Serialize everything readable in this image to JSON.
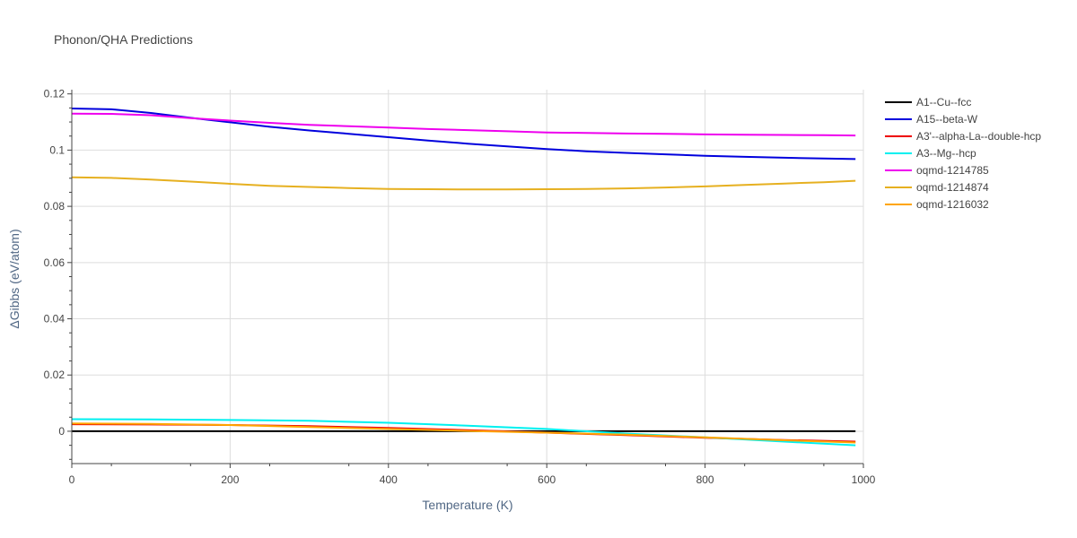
{
  "chart_data": {
    "type": "line",
    "title": "Phonon/QHA Predictions",
    "xlabel": "Temperature (K)",
    "ylabel": "ΔGibbs (eV/atom)",
    "xlim": [
      0,
      1000
    ],
    "ylim": [
      -0.0115,
      0.1215
    ],
    "x_ticks": [
      0,
      200,
      400,
      600,
      800,
      1000
    ],
    "y_ticks": [
      0,
      0.02,
      0.04,
      0.06,
      0.08,
      0.1,
      0.12
    ],
    "x_tick_labels": [
      "0",
      "200",
      "400",
      "600",
      "800",
      "1000"
    ],
    "y_tick_labels": [
      "0",
      "0.02",
      "0.04",
      "0.06",
      "0.08",
      "0.1",
      "0.12"
    ],
    "grid": true,
    "legend_position": "right",
    "series": [
      {
        "name": "A1--Cu--fcc",
        "color": "#000000",
        "points": [
          [
            0,
            0
          ],
          [
            100,
            0
          ],
          [
            200,
            0
          ],
          [
            300,
            0
          ],
          [
            400,
            0
          ],
          [
            500,
            0
          ],
          [
            600,
            0
          ],
          [
            700,
            0
          ],
          [
            800,
            0
          ],
          [
            900,
            0
          ],
          [
            990,
            0
          ]
        ]
      },
      {
        "name": "A15--beta-W",
        "color": "#0000dd",
        "points": [
          [
            0,
            0.1148
          ],
          [
            50,
            0.1145
          ],
          [
            100,
            0.1132
          ],
          [
            150,
            0.1115
          ],
          [
            200,
            0.1099
          ],
          [
            250,
            0.1083
          ],
          [
            300,
            0.107
          ],
          [
            350,
            0.1058
          ],
          [
            400,
            0.1046
          ],
          [
            450,
            0.1034
          ],
          [
            500,
            0.1023
          ],
          [
            550,
            0.1013
          ],
          [
            600,
            0.1004
          ],
          [
            650,
            0.0996
          ],
          [
            700,
            0.099
          ],
          [
            750,
            0.0985
          ],
          [
            800,
            0.098
          ],
          [
            850,
            0.0976
          ],
          [
            900,
            0.0973
          ],
          [
            950,
            0.097
          ],
          [
            990,
            0.0968
          ]
        ]
      },
      {
        "name": "A3'--alpha-La--double-hcp",
        "color": "#ee0000",
        "points": [
          [
            0,
            0.0025
          ],
          [
            100,
            0.0024
          ],
          [
            200,
            0.0022
          ],
          [
            300,
            0.0018
          ],
          [
            400,
            0.0012
          ],
          [
            500,
            0.0004
          ],
          [
            600,
            -0.0005
          ],
          [
            700,
            -0.0014
          ],
          [
            800,
            -0.0023
          ],
          [
            900,
            -0.0031
          ],
          [
            990,
            -0.0037
          ]
        ]
      },
      {
        "name": "A3--Mg--hcp",
        "color": "#00f0f0",
        "points": [
          [
            0,
            0.0043
          ],
          [
            100,
            0.0042
          ],
          [
            200,
            0.004
          ],
          [
            300,
            0.0037
          ],
          [
            400,
            0.003
          ],
          [
            500,
            0.002
          ],
          [
            600,
            0.0008
          ],
          [
            700,
            -0.0008
          ],
          [
            800,
            -0.0022
          ],
          [
            900,
            -0.0037
          ],
          [
            990,
            -0.005
          ]
        ]
      },
      {
        "name": "oqmd-1214785",
        "color": "#ee00ee",
        "points": [
          [
            0,
            0.113
          ],
          [
            50,
            0.1129
          ],
          [
            100,
            0.1124
          ],
          [
            150,
            0.1114
          ],
          [
            200,
            0.1105
          ],
          [
            250,
            0.1097
          ],
          [
            300,
            0.109
          ],
          [
            350,
            0.1085
          ],
          [
            400,
            0.108
          ],
          [
            450,
            0.1075
          ],
          [
            500,
            0.1071
          ],
          [
            550,
            0.1067
          ],
          [
            600,
            0.1063
          ],
          [
            650,
            0.1061
          ],
          [
            700,
            0.1059
          ],
          [
            750,
            0.1058
          ],
          [
            800,
            0.1056
          ],
          [
            850,
            0.1055
          ],
          [
            900,
            0.1054
          ],
          [
            950,
            0.1053
          ],
          [
            990,
            0.1052
          ]
        ]
      },
      {
        "name": "oqmd-1214874",
        "color": "#e6b020",
        "points": [
          [
            0,
            0.0903
          ],
          [
            50,
            0.0901
          ],
          [
            100,
            0.0895
          ],
          [
            150,
            0.0888
          ],
          [
            200,
            0.088
          ],
          [
            250,
            0.0873
          ],
          [
            300,
            0.0869
          ],
          [
            350,
            0.0865
          ],
          [
            400,
            0.0862
          ],
          [
            450,
            0.0861
          ],
          [
            500,
            0.086
          ],
          [
            550,
            0.086
          ],
          [
            600,
            0.0861
          ],
          [
            650,
            0.0862
          ],
          [
            700,
            0.0864
          ],
          [
            750,
            0.0867
          ],
          [
            800,
            0.0871
          ],
          [
            850,
            0.0876
          ],
          [
            900,
            0.0881
          ],
          [
            950,
            0.0886
          ],
          [
            990,
            0.0891
          ]
        ]
      },
      {
        "name": "oqmd-1216032",
        "color": "#ffa500",
        "points": [
          [
            0,
            0.0028
          ],
          [
            100,
            0.0026
          ],
          [
            200,
            0.0022
          ],
          [
            300,
            0.0015
          ],
          [
            400,
            0.0008
          ],
          [
            500,
            0.0001
          ],
          [
            600,
            -0.0005
          ],
          [
            700,
            -0.0012
          ],
          [
            800,
            -0.0022
          ],
          [
            900,
            -0.0032
          ],
          [
            990,
            -0.004
          ]
        ]
      }
    ]
  }
}
